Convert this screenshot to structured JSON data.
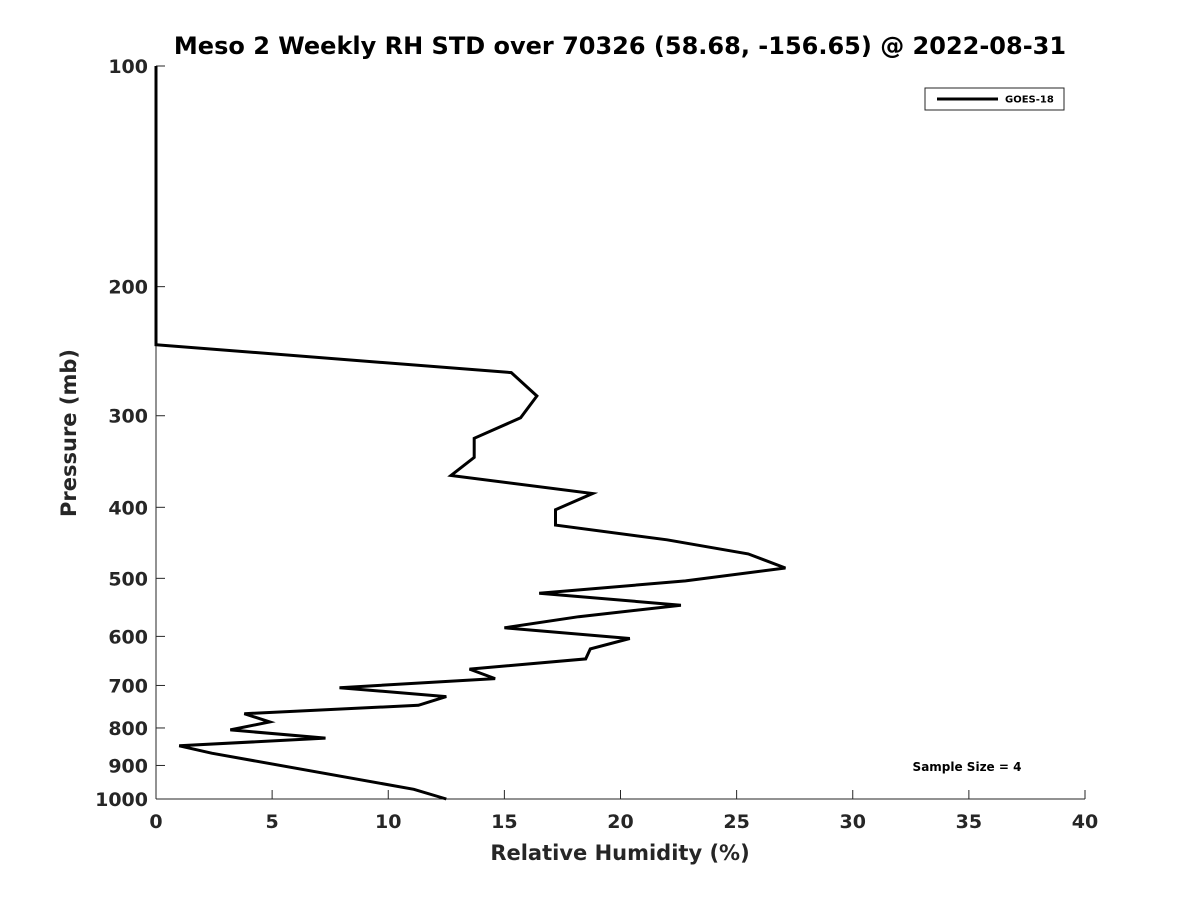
{
  "chart_data": {
    "type": "line",
    "title": "Meso 2 Weekly RH STD over 70326 (58.68, -156.65) @ 2022-08-31",
    "xlabel": "Relative Humidity (%)",
    "ylabel": "Pressure (mb)",
    "xlim": [
      0,
      40
    ],
    "ylim": [
      100,
      1000
    ],
    "y_scale": "log",
    "y_reversed": true,
    "x_ticks": [
      0,
      5,
      10,
      15,
      20,
      25,
      30,
      35,
      40
    ],
    "x_tick_labels": [
      "0",
      "5",
      "10",
      "15",
      "20",
      "25",
      "30",
      "35",
      "40"
    ],
    "y_ticks": [
      100,
      200,
      300,
      400,
      500,
      600,
      700,
      800,
      900,
      1000
    ],
    "y_tick_labels": [
      "100",
      "200",
      "300",
      "400",
      "500",
      "600",
      "700",
      "800",
      "900",
      "1000"
    ],
    "grid": false,
    "legend_position": "top-right",
    "annotation": "Sample Size = 4",
    "series": [
      {
        "name": "GOES-18",
        "color": "#000000",
        "x": [
          0,
          0,
          0,
          15.3,
          16.4,
          15.7,
          13.7,
          13.7,
          12.7,
          18.8,
          17.2,
          17.2,
          22.0,
          25.5,
          27.1,
          22.8,
          16.5,
          22.6,
          18.2,
          15.0,
          20.4,
          18.7,
          18.5,
          13.5,
          14.6,
          7.9,
          12.5,
          11.3,
          3.8,
          4.9,
          3.2,
          7.3,
          1.0,
          2.4,
          11.1,
          12.5
        ],
        "y": [
          100,
          200,
          240,
          262,
          282,
          302,
          322,
          342,
          362,
          383,
          403,
          423,
          443,
          463,
          484,
          504,
          524,
          544,
          564,
          584,
          604,
          624,
          644,
          665,
          685,
          705,
          725,
          745,
          765,
          785,
          805,
          826,
          846,
          866,
          970,
          1000
        ]
      }
    ]
  }
}
